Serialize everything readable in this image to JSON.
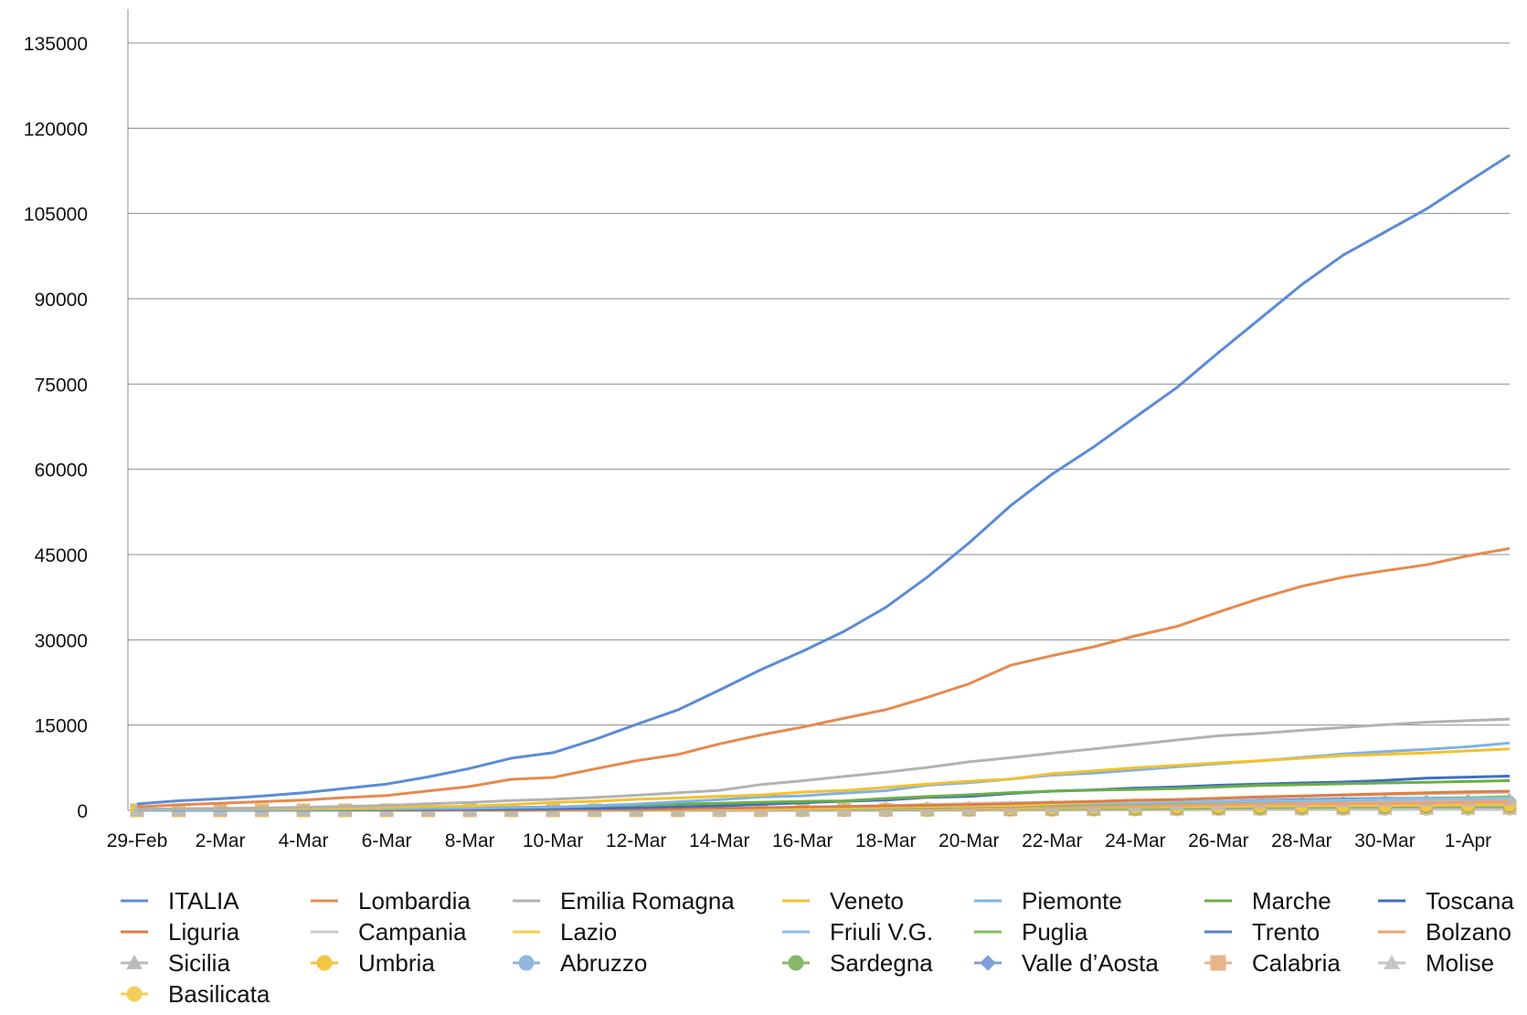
{
  "chart_data": {
    "type": "line",
    "title": "",
    "xlabel": "",
    "ylabel": "",
    "ylim": [
      0,
      135000
    ],
    "yticks": [
      0,
      15000,
      30000,
      45000,
      60000,
      75000,
      90000,
      105000,
      120000,
      135000
    ],
    "x": [
      "29-Feb",
      "1-Mar",
      "2-Mar",
      "3-Mar",
      "4-Mar",
      "5-Mar",
      "6-Mar",
      "7-Mar",
      "8-Mar",
      "9-Mar",
      "10-Mar",
      "11-Mar",
      "12-Mar",
      "13-Mar",
      "14-Mar",
      "15-Mar",
      "16-Mar",
      "17-Mar",
      "18-Mar",
      "19-Mar",
      "20-Mar",
      "21-Mar",
      "22-Mar",
      "23-Mar",
      "24-Mar",
      "25-Mar",
      "26-Mar",
      "27-Mar",
      "28-Mar",
      "29-Mar",
      "30-Mar",
      "31-Mar",
      "1-Apr",
      "2-Apr"
    ],
    "x_tick_labels": [
      "29-Feb",
      "2-Mar",
      "4-Mar",
      "6-Mar",
      "8-Mar",
      "10-Mar",
      "12-Mar",
      "14-Mar",
      "16-Mar",
      "18-Mar",
      "20-Mar",
      "22-Mar",
      "24-Mar",
      "26-Mar",
      "28-Mar",
      "30-Mar",
      "1-Apr"
    ],
    "grid": true,
    "legend_position": "bottom",
    "series": [
      {
        "name": "ITALIA",
        "color": "#5b8bd6",
        "marker": "none",
        "values": [
          1128,
          1694,
          2036,
          2502,
          3089,
          3858,
          4636,
          5883,
          7375,
          9172,
          10149,
          12462,
          15113,
          17660,
          21157,
          24747,
          27980,
          31506,
          35713,
          41035,
          47021,
          53578,
          59138,
          63927,
          69176,
          74386,
          80539,
          86498,
          92472,
          97689,
          101739,
          105792,
          110574,
          115242
        ]
      },
      {
        "name": "Lombardia",
        "color": "#e8894d",
        "marker": "none",
        "values": [
          615,
          984,
          1254,
          1520,
          1820,
          2251,
          2612,
          3420,
          4189,
          5469,
          5791,
          7280,
          8725,
          9820,
          11685,
          13272,
          14649,
          16220,
          17713,
          19884,
          22264,
          25515,
          27206,
          28761,
          30703,
          32346,
          34889,
          37298,
          39415,
          41007,
          42161,
          43208,
          44773,
          46065
        ]
      },
      {
        "name": "Emilia Romagna",
        "color": "#b2b2b2",
        "marker": "none",
        "values": [
          217,
          285,
          335,
          420,
          544,
          698,
          870,
          1180,
          1386,
          1739,
          1947,
          2263,
          2644,
          3093,
          3522,
          4525,
          5214,
          5968,
          6705,
          7555,
          8531,
          9254,
          10054,
          10816,
          11588,
          12383,
          13119,
          13531,
          14074,
          14586,
          15058,
          15508,
          15787,
          16051
        ]
      },
      {
        "name": "Veneto",
        "color": "#f2c12e",
        "marker": "none",
        "values": [
          191,
          263,
          273,
          307,
          360,
          407,
          488,
          670,
          744,
          1023,
          1384,
          1595,
          1937,
          2172,
          2473,
          2704,
          3214,
          3484,
          4031,
          4617,
          5122,
          5505,
          6442,
          6935,
          7497,
          7930,
          8358,
          8724,
          9155,
          9625,
          9844,
          10111,
          10463,
          10824
        ]
      },
      {
        "name": "Piemonte",
        "color": "#7fb2e5",
        "marker": "none",
        "values": [
          11,
          49,
          56,
          82,
          143,
          207,
          243,
          350,
          360,
          501,
          580,
          815,
          1111,
          1516,
          1897,
          2341,
          2552,
          3031,
          3461,
          4420,
          4861,
          5515,
          6193,
          6534,
          7092,
          7671,
          8206,
          8712,
          9301,
          9918,
          10353,
          10728,
          11189,
          11859
        ]
      },
      {
        "name": "Marche",
        "color": "#6cae45",
        "marker": "none",
        "values": [
          6,
          11,
          25,
          61,
          84,
          124,
          199,
          271,
          394,
          479,
          592,
          725,
          957,
          1133,
          1242,
          1425,
          1568,
          1671,
          2097,
          2421,
          2736,
          3115,
          3373,
          3558,
          3684,
          3835,
          4122,
          4386,
          4511,
          4683,
          4814,
          4937,
          5076,
          5217
        ]
      },
      {
        "name": "Toscana",
        "color": "#3f6fc4",
        "marker": "none",
        "values": [
          11,
          13,
          19,
          38,
          61,
          79,
          113,
          166,
          208,
          264,
          320,
          364,
          470,
          630,
          781,
          1053,
          1330,
          1612,
          1793,
          2277,
          2461,
          2972,
          3378,
          3601,
          3924,
          4122,
          4412,
          4608,
          4816,
          4987,
          5273,
          5671,
          5847,
          6030
        ]
      },
      {
        "name": "Liguria",
        "color": "#e07d43",
        "marker": "none",
        "values": [
          19,
          25,
          25,
          25,
          26,
          26,
          26,
          46,
          62,
          67,
          114,
          156,
          189,
          265,
          384,
          459,
          586,
          664,
          785,
          887,
          1006,
          1163,
          1375,
          1538,
          1789,
          1900,
          2134,
          2366,
          2537,
          2739,
          2911,
          3102,
          3240,
          3379
        ]
      },
      {
        "name": "Campania",
        "color": "#c8c8c8",
        "marker": "none",
        "values": [
          13,
          17,
          17,
          17,
          22,
          22,
          30,
          47,
          60,
          89,
          120,
          146,
          220,
          251,
          311,
          449,
          606,
          676,
          834,
          1026,
          1199,
          1366,
          1434,
          1592,
          1759,
          1918,
          2095,
          2268,
          2456,
          2632,
          2770,
          2873,
          2999,
          3151
        ]
      },
      {
        "name": "Lazio",
        "color": "#f5d04a",
        "marker": "none",
        "values": [
          6,
          6,
          6,
          7,
          17,
          21,
          30,
          44,
          44,
          71,
          74,
          102,
          171,
          201,
          248,
          286,
          383,
          434,
          588,
          717,
          797,
          923,
          1171,
          1458,
          1728,
          1881,
          2142,
          2321,
          2507,
          2706,
          2864,
          3005,
          3184,
          3333
        ]
      },
      {
        "name": "Friuli V.G.",
        "color": "#8ebce8",
        "marker": "none",
        "values": [
          0,
          9,
          11,
          18,
          27,
          31,
          43,
          53,
          71,
          89,
          123,
          131,
          188,
          238,
          312,
          385,
          462,
          558,
          669,
          785,
          875,
          1013,
          1165,
          1234,
          1356,
          1480,
          1574,
          1665,
          1746,
          1835,
          1952,
          2013,
          2043,
          2146
        ]
      },
      {
        "name": "Puglia",
        "color": "#86bc5e",
        "marker": "none",
        "values": [
          1,
          3,
          3,
          3,
          6,
          18,
          22,
          26,
          30,
          46,
          50,
          91,
          135,
          154,
          194,
          267,
          304,
          372,
          431,
          494,
          646,
          805,
          935,
          1041,
          1194,
          1303,
          1459,
          1558,
          1698,
          1813,
          1955,
          2085,
          2212,
          2434
        ]
      },
      {
        "name": "Trento",
        "color": "#5a7ed0",
        "marker": "none",
        "values": [
          0,
          0,
          0,
          0,
          4,
          4,
          6,
          10,
          10,
          22,
          43,
          72,
          115,
          175,
          217,
          309,
          375,
          462,
          563,
          698,
          871,
          980,
          1126,
          1176,
          1307,
          1435,
          1573,
          1744,
          1877,
          2001,
          2087,
          2144,
          2227,
          2340
        ]
      },
      {
        "name": "Bolzano",
        "color": "#f0a073",
        "marker": "none",
        "values": [
          1,
          1,
          1,
          1,
          1,
          1,
          1,
          5,
          9,
          11,
          18,
          21,
          53,
          76,
          126,
          166,
          203,
          261,
          294,
          353,
          452,
          538,
          609,
          646,
          723,
          882,
          990,
          1075,
          1117,
          1205,
          1236,
          1320,
          1432,
          1488
        ]
      },
      {
        "name": "Sicilia",
        "color": "#bbbbbb",
        "marker": "triangle",
        "values": [
          8,
          9,
          9,
          9,
          11,
          13,
          18,
          19,
          21,
          29,
          52,
          64,
          83,
          115,
          128,
          170,
          183,
          235,
          282,
          340,
          437,
          583,
          685,
          721,
          846,
          1038,
          1149,
          1319,
          1463,
          1555,
          1647,
          1718,
          1791,
          1873
        ]
      },
      {
        "name": "Umbria",
        "color": "#f4c542",
        "marker": "circle",
        "values": [
          0,
          0,
          0,
          1,
          7,
          9,
          9,
          12,
          20,
          26,
          29,
          34,
          49,
          70,
          92,
          119,
          156,
          171,
          249,
          273,
          348,
          385,
          475,
          525,
          580,
          636,
          700,
          757,
          800,
          827,
          869,
          929,
          946,
          999
        ]
      },
      {
        "name": "Abruzzo",
        "color": "#8fb7e0",
        "marker": "circle",
        "values": [
          0,
          1,
          1,
          2,
          5,
          5,
          5,
          7,
          11,
          22,
          30,
          37,
          38,
          52,
          84,
          89,
          116,
          119,
          176,
          229,
          287,
          356,
          411,
          478,
          600,
          707,
          859,
          925,
          982,
          1049,
          1140,
          1243,
          1293,
          1339
        ]
      },
      {
        "name": "Sardegna",
        "color": "#86b86a",
        "marker": "circle",
        "values": [
          0,
          0,
          0,
          0,
          0,
          1,
          1,
          2,
          2,
          8,
          9,
          20,
          39,
          52,
          56,
          66,
          73,
          85,
          109,
          133,
          178,
          231,
          269,
          308,
          339,
          388,
          429,
          463,
          532,
          573,
          613,
          662,
          704,
          764
        ]
      },
      {
        "name": "Valle d’Aosta",
        "color": "#7f9fdb",
        "marker": "diamond",
        "values": [
          0,
          0,
          0,
          0,
          0,
          0,
          0,
          0,
          0,
          0,
          0,
          1,
          11,
          13,
          17,
          20,
          22,
          34,
          47,
          142,
          180,
          250,
          299,
          317,
          351,
          389,
          428,
          481,
          529,
          554,
          586,
          596,
          618,
          633
        ]
      },
      {
        "name": "Calabria",
        "color": "#e8b48a",
        "marker": "square",
        "values": [
          0,
          0,
          0,
          0,
          1,
          1,
          1,
          1,
          1,
          7,
          11,
          13,
          19,
          29,
          33,
          42,
          60,
          79,
          93,
          114,
          130,
          161,
          194,
          210,
          262,
          305,
          363,
          409,
          467,
          520,
          562,
          598,
          630,
          670
        ]
      },
      {
        "name": "Molise",
        "color": "#c5c5c5",
        "marker": "triangle",
        "values": [
          0,
          0,
          0,
          0,
          0,
          0,
          0,
          0,
          0,
          6,
          11,
          11,
          12,
          15,
          16,
          17,
          19,
          22,
          24,
          29,
          32,
          37,
          55,
          61,
          74,
          84,
          96,
          109,
          117,
          140,
          145,
          153,
          162,
          173
        ]
      },
      {
        "name": "Basilicata",
        "color": "#f5cd5a",
        "marker": "circle",
        "values": [
          0,
          0,
          0,
          0,
          0,
          0,
          1,
          1,
          1,
          1,
          3,
          8,
          10,
          12,
          14,
          14,
          17,
          20,
          27,
          38,
          48,
          56,
          70,
          81,
          111,
          143,
          162,
          192,
          203,
          216,
          231,
          244,
          251,
          262
        ]
      }
    ]
  }
}
